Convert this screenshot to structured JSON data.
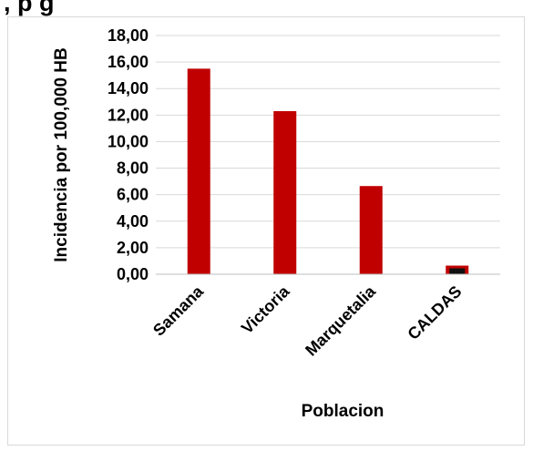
{
  "header": {
    "title_fragment": ",          p             g"
  },
  "chart_data": {
    "type": "bar",
    "title": "",
    "xlabel": "Poblacion",
    "ylabel": "Incidencia por 100,000 HB",
    "categories": [
      "Samana",
      "Victoria",
      "Marquetalia",
      "CALDAS"
    ],
    "values": [
      15.5,
      12.3,
      6.65,
      0.65
    ],
    "ylim": [
      0,
      18
    ],
    "yticks": [
      0,
      2,
      4,
      6,
      8,
      10,
      12,
      14,
      16,
      18
    ],
    "ytick_labels": [
      "0,00",
      "2,00",
      "4,00",
      "6,00",
      "8,00",
      "10,00",
      "12,00",
      "14,00",
      "16,00",
      "18,00"
    ],
    "grid": true,
    "colors": {
      "bar": "#c00000",
      "highlight_bar": "#c00000",
      "highlight_inner": "#111111",
      "grid": "#d9d9d9"
    }
  }
}
